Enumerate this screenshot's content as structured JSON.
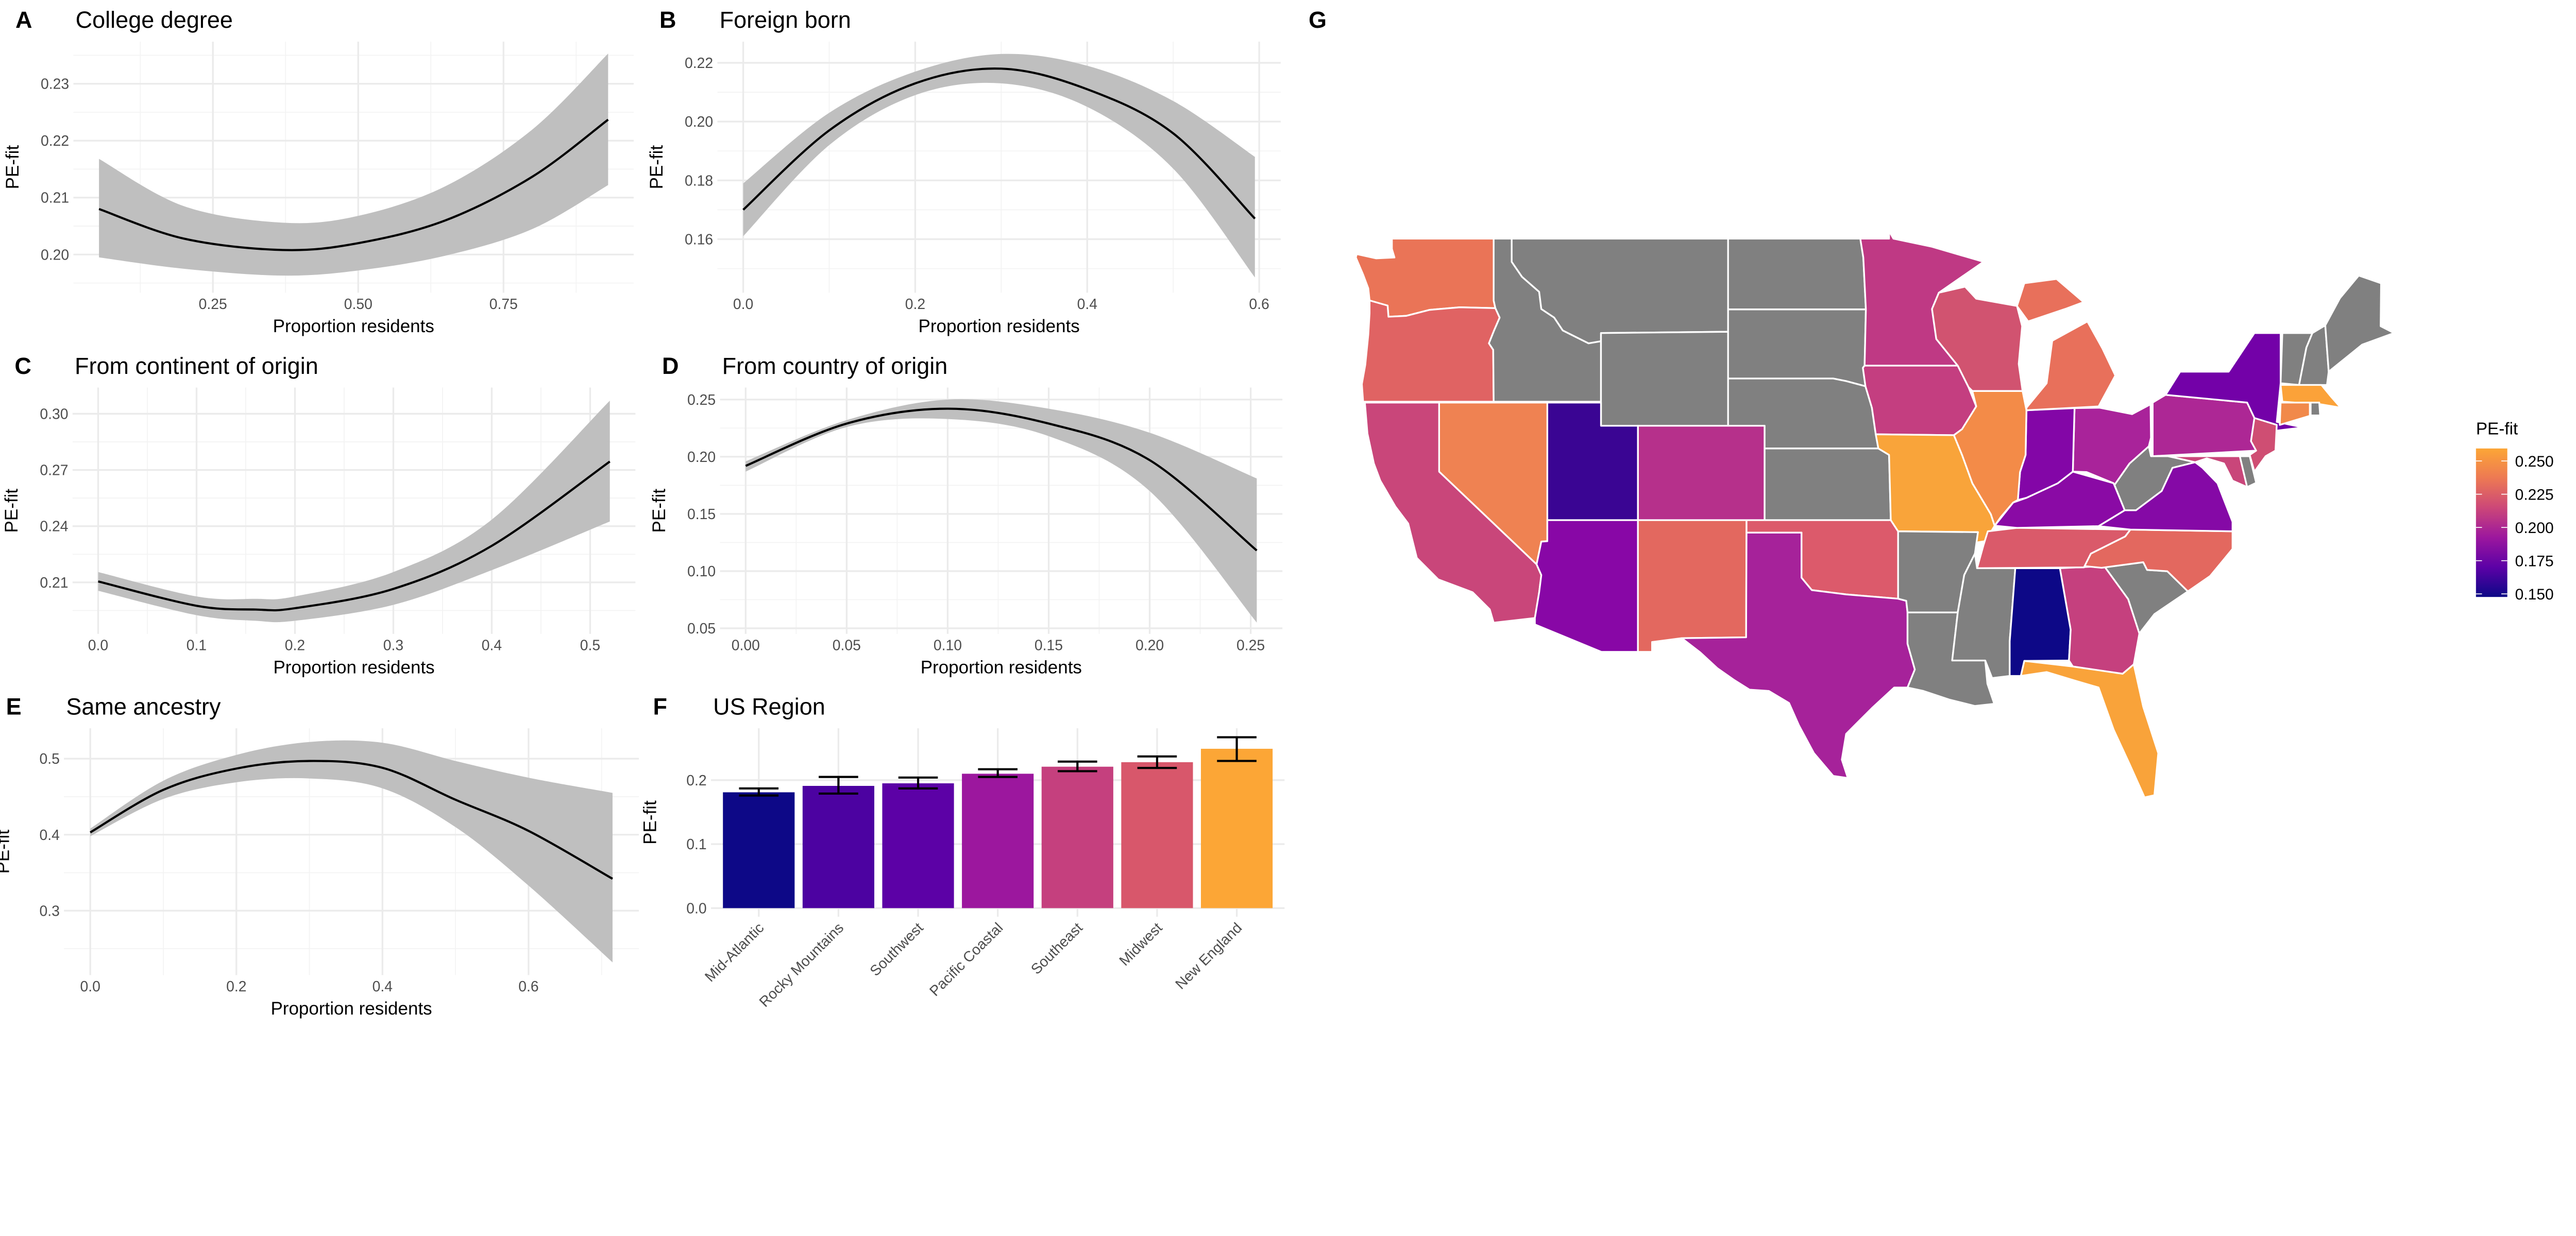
{
  "chart_data": [
    {
      "panel": "A",
      "type": "line",
      "title": "College degree",
      "xlabel": "Proportion residents",
      "ylabel": "PE-fit",
      "xlim": [
        0.01,
        0.974
      ],
      "ylim": [
        0.1933,
        0.2374
      ],
      "grid": true,
      "xticks": [
        0.25,
        0.5,
        0.75
      ],
      "xtick_labels": [
        "0.25",
        "0.50",
        "0.75"
      ],
      "yticks": [
        0.2,
        0.21,
        0.22,
        0.23
      ],
      "ytick_labels": [
        "0.20",
        "0.21",
        "0.22",
        "0.23"
      ],
      "x": [
        0.054,
        0.2,
        0.37,
        0.5,
        0.65,
        0.8,
        0.93
      ],
      "fit": [
        0.208,
        0.2028,
        0.2008,
        0.202,
        0.206,
        0.2137,
        0.2237
      ],
      "lower": [
        0.1995,
        0.1975,
        0.1963,
        0.1972,
        0.1998,
        0.2045,
        0.2122
      ],
      "upper": [
        0.2168,
        0.2085,
        0.2056,
        0.2068,
        0.212,
        0.222,
        0.2353
      ]
    },
    {
      "panel": "B",
      "type": "line",
      "title": "Foreign born",
      "xlabel": "Proportion residents",
      "ylabel": "PE-fit",
      "xlim": [
        -0.03,
        0.625
      ],
      "ylim": [
        0.1418,
        0.2272
      ],
      "grid": true,
      "xticks": [
        0.0,
        0.2,
        0.4,
        0.6
      ],
      "xtick_labels": [
        "0.0",
        "0.2",
        "0.4",
        "0.6"
      ],
      "yticks": [
        0.16,
        0.18,
        0.2,
        0.22
      ],
      "ytick_labels": [
        "0.16",
        "0.18",
        "0.20",
        "0.22"
      ],
      "x": [
        0.0,
        0.1,
        0.2,
        0.3,
        0.4,
        0.5,
        0.595
      ],
      "fit": [
        0.17,
        0.197,
        0.213,
        0.218,
        0.211,
        0.196,
        0.167
      ],
      "lower": [
        0.161,
        0.192,
        0.209,
        0.213,
        0.205,
        0.184,
        0.147
      ],
      "upper": [
        0.179,
        0.203,
        0.217,
        0.223,
        0.219,
        0.207,
        0.188
      ]
    },
    {
      "panel": "C",
      "type": "line",
      "title": "From continent of origin",
      "xlabel": "Proportion residents",
      "ylabel": "PE-fit",
      "xlim": [
        -0.026,
        0.546
      ],
      "ylim": [
        0.1825,
        0.314
      ],
      "grid": true,
      "xticks": [
        0.0,
        0.1,
        0.2,
        0.3,
        0.4,
        0.5
      ],
      "xtick_labels": [
        "0.0",
        "0.1",
        "0.2",
        "0.3",
        "0.4",
        "0.5"
      ],
      "yticks": [
        0.21,
        0.24,
        0.27,
        0.3
      ],
      "ytick_labels": [
        "0.21",
        "0.24",
        "0.27",
        "0.30"
      ],
      "x": [
        0.0,
        0.1,
        0.16,
        0.2,
        0.3,
        0.4,
        0.52
      ],
      "fit": [
        0.2105,
        0.1975,
        0.1955,
        0.1962,
        0.2065,
        0.2295,
        0.2745
      ],
      "lower": [
        0.2055,
        0.1925,
        0.1895,
        0.1895,
        0.198,
        0.2165,
        0.2425
      ],
      "upper": [
        0.2155,
        0.2025,
        0.2012,
        0.2025,
        0.2155,
        0.2435,
        0.307
      ]
    },
    {
      "panel": "D",
      "type": "line",
      "title": "From country of origin",
      "xlabel": "Proportion residents",
      "ylabel": "PE-fit",
      "xlim": [
        -0.0127,
        0.2657
      ],
      "ylim": [
        0.0451,
        0.2605
      ],
      "grid": true,
      "xticks": [
        0.0,
        0.05,
        0.1,
        0.15,
        0.2,
        0.25
      ],
      "xtick_labels": [
        "0.00",
        "0.05",
        "0.10",
        "0.15",
        "0.20",
        "0.25"
      ],
      "yticks": [
        0.05,
        0.1,
        0.15,
        0.2,
        0.25
      ],
      "ytick_labels": [
        "0.05",
        "0.10",
        "0.15",
        "0.20",
        "0.25"
      ],
      "x": [
        0.0,
        0.05,
        0.1,
        0.15,
        0.2,
        0.253
      ],
      "fit": [
        0.192,
        0.229,
        0.242,
        0.229,
        0.197,
        0.118
      ],
      "lower": [
        0.187,
        0.226,
        0.233,
        0.218,
        0.17,
        0.055
      ],
      "upper": [
        0.196,
        0.232,
        0.25,
        0.242,
        0.221,
        0.181
      ]
    },
    {
      "panel": "E",
      "type": "line",
      "title": "Same ancestry",
      "xlabel": "Proportion residents",
      "ylabel": "PE-fit",
      "xlim": [
        -0.036,
        0.751
      ],
      "ylim": [
        0.2153,
        0.54
      ],
      "grid": true,
      "xticks": [
        0.0,
        0.2,
        0.4,
        0.6
      ],
      "xtick_labels": [
        "0.0",
        "0.2",
        "0.4",
        "0.6"
      ],
      "yticks": [
        0.3,
        0.4,
        0.5
      ],
      "ytick_labels": [
        "0.3",
        "0.4",
        "0.5"
      ],
      "x": [
        0.0,
        0.1,
        0.2,
        0.3,
        0.4,
        0.5,
        0.6,
        0.715
      ],
      "fit": [
        0.403,
        0.459,
        0.487,
        0.497,
        0.488,
        0.446,
        0.405,
        0.342
      ],
      "lower": [
        0.398,
        0.447,
        0.469,
        0.474,
        0.461,
        0.41,
        0.333,
        0.232
      ],
      "upper": [
        0.408,
        0.471,
        0.505,
        0.522,
        0.521,
        0.497,
        0.475,
        0.455
      ]
    },
    {
      "panel": "F",
      "type": "bar",
      "title": "US Region",
      "xlabel": "",
      "ylabel": "PE-fit",
      "ylim": [
        -0.0134,
        0.281
      ],
      "grid": true,
      "yticks": [
        0.0,
        0.1,
        0.2
      ],
      "ytick_labels": [
        "0.0",
        "0.1",
        "0.2"
      ],
      "categories": [
        "Mid-Atlantic",
        "Rocky Mountains",
        "Southwest",
        "Pacific Coastal",
        "Southeast",
        "Midwest",
        "New England"
      ],
      "values": [
        0.181,
        0.191,
        0.195,
        0.21,
        0.221,
        0.228,
        0.249
      ],
      "lower": [
        0.176,
        0.179,
        0.187,
        0.205,
        0.214,
        0.219,
        0.23
      ],
      "upper": [
        0.187,
        0.205,
        0.204,
        0.217,
        0.229,
        0.237,
        0.267
      ],
      "colors": [
        "#0d0887",
        "#4c02a1",
        "#5c01a6",
        "#9c179e",
        "#c5407e",
        "#d8576b",
        "#fca636"
      ]
    },
    {
      "panel": "G",
      "type": "choropleth",
      "title": "",
      "legend": {
        "title": "PE-fit",
        "position": "right",
        "range": [
          0.1477,
          0.2594
        ],
        "ticks": [
          0.15,
          0.175,
          0.2,
          0.225,
          0.25
        ],
        "tick_labels": [
          "0.150",
          "0.175",
          "0.200",
          "0.225",
          "0.250"
        ],
        "gradient": [
          "#0d0887",
          "#5c01a6",
          "#9c179e",
          "#cc4778",
          "#ed7953",
          "#fca636"
        ]
      },
      "missing_color": "#808080",
      "state_colors": {
        "WA": "#ea7457",
        "OR": "#e06363",
        "CA": "#c9467a",
        "NV": "#ef8252",
        "ID": "#808080",
        "MT": "#808080",
        "WY": "#808080",
        "UT": "#3a0593",
        "AZ": "#8807a6",
        "CO": "#b6308b",
        "NM": "#e3685f",
        "ND": "#808080",
        "SD": "#808080",
        "NE": "#808080",
        "KS": "#808080",
        "OK": "#dc5a6b",
        "TX": "#a6229a",
        "MN": "#bf3984",
        "IA": "#c43e80",
        "MO": "#f9a43a",
        "AR": "#808080",
        "LA": "#808080",
        "WI": "#d15370",
        "IL": "#f38b48",
        "MI": "#e8705b",
        "IN": "#8306a7",
        "OH": "#a9239a",
        "KY": "#8a0aa5",
        "TN": "#da5a6a",
        "MS": "#808080",
        "AL": "#0d0887",
        "GA": "#c5407e",
        "FL": "#f9a33a",
        "SC": "#808080",
        "NC": "#e3685f",
        "VA": "#8509a6",
        "WV": "#808080",
        "PA": "#ad2795",
        "NY": "#7301a8",
        "NJ": "#cf4e73",
        "MD": "#c9467a",
        "DE": "#808080",
        "VT": "#808080",
        "NH": "#808080",
        "ME": "#808080",
        "MA": "#fba239",
        "CT": "#f1894a",
        "RI": "#808080"
      }
    }
  ]
}
